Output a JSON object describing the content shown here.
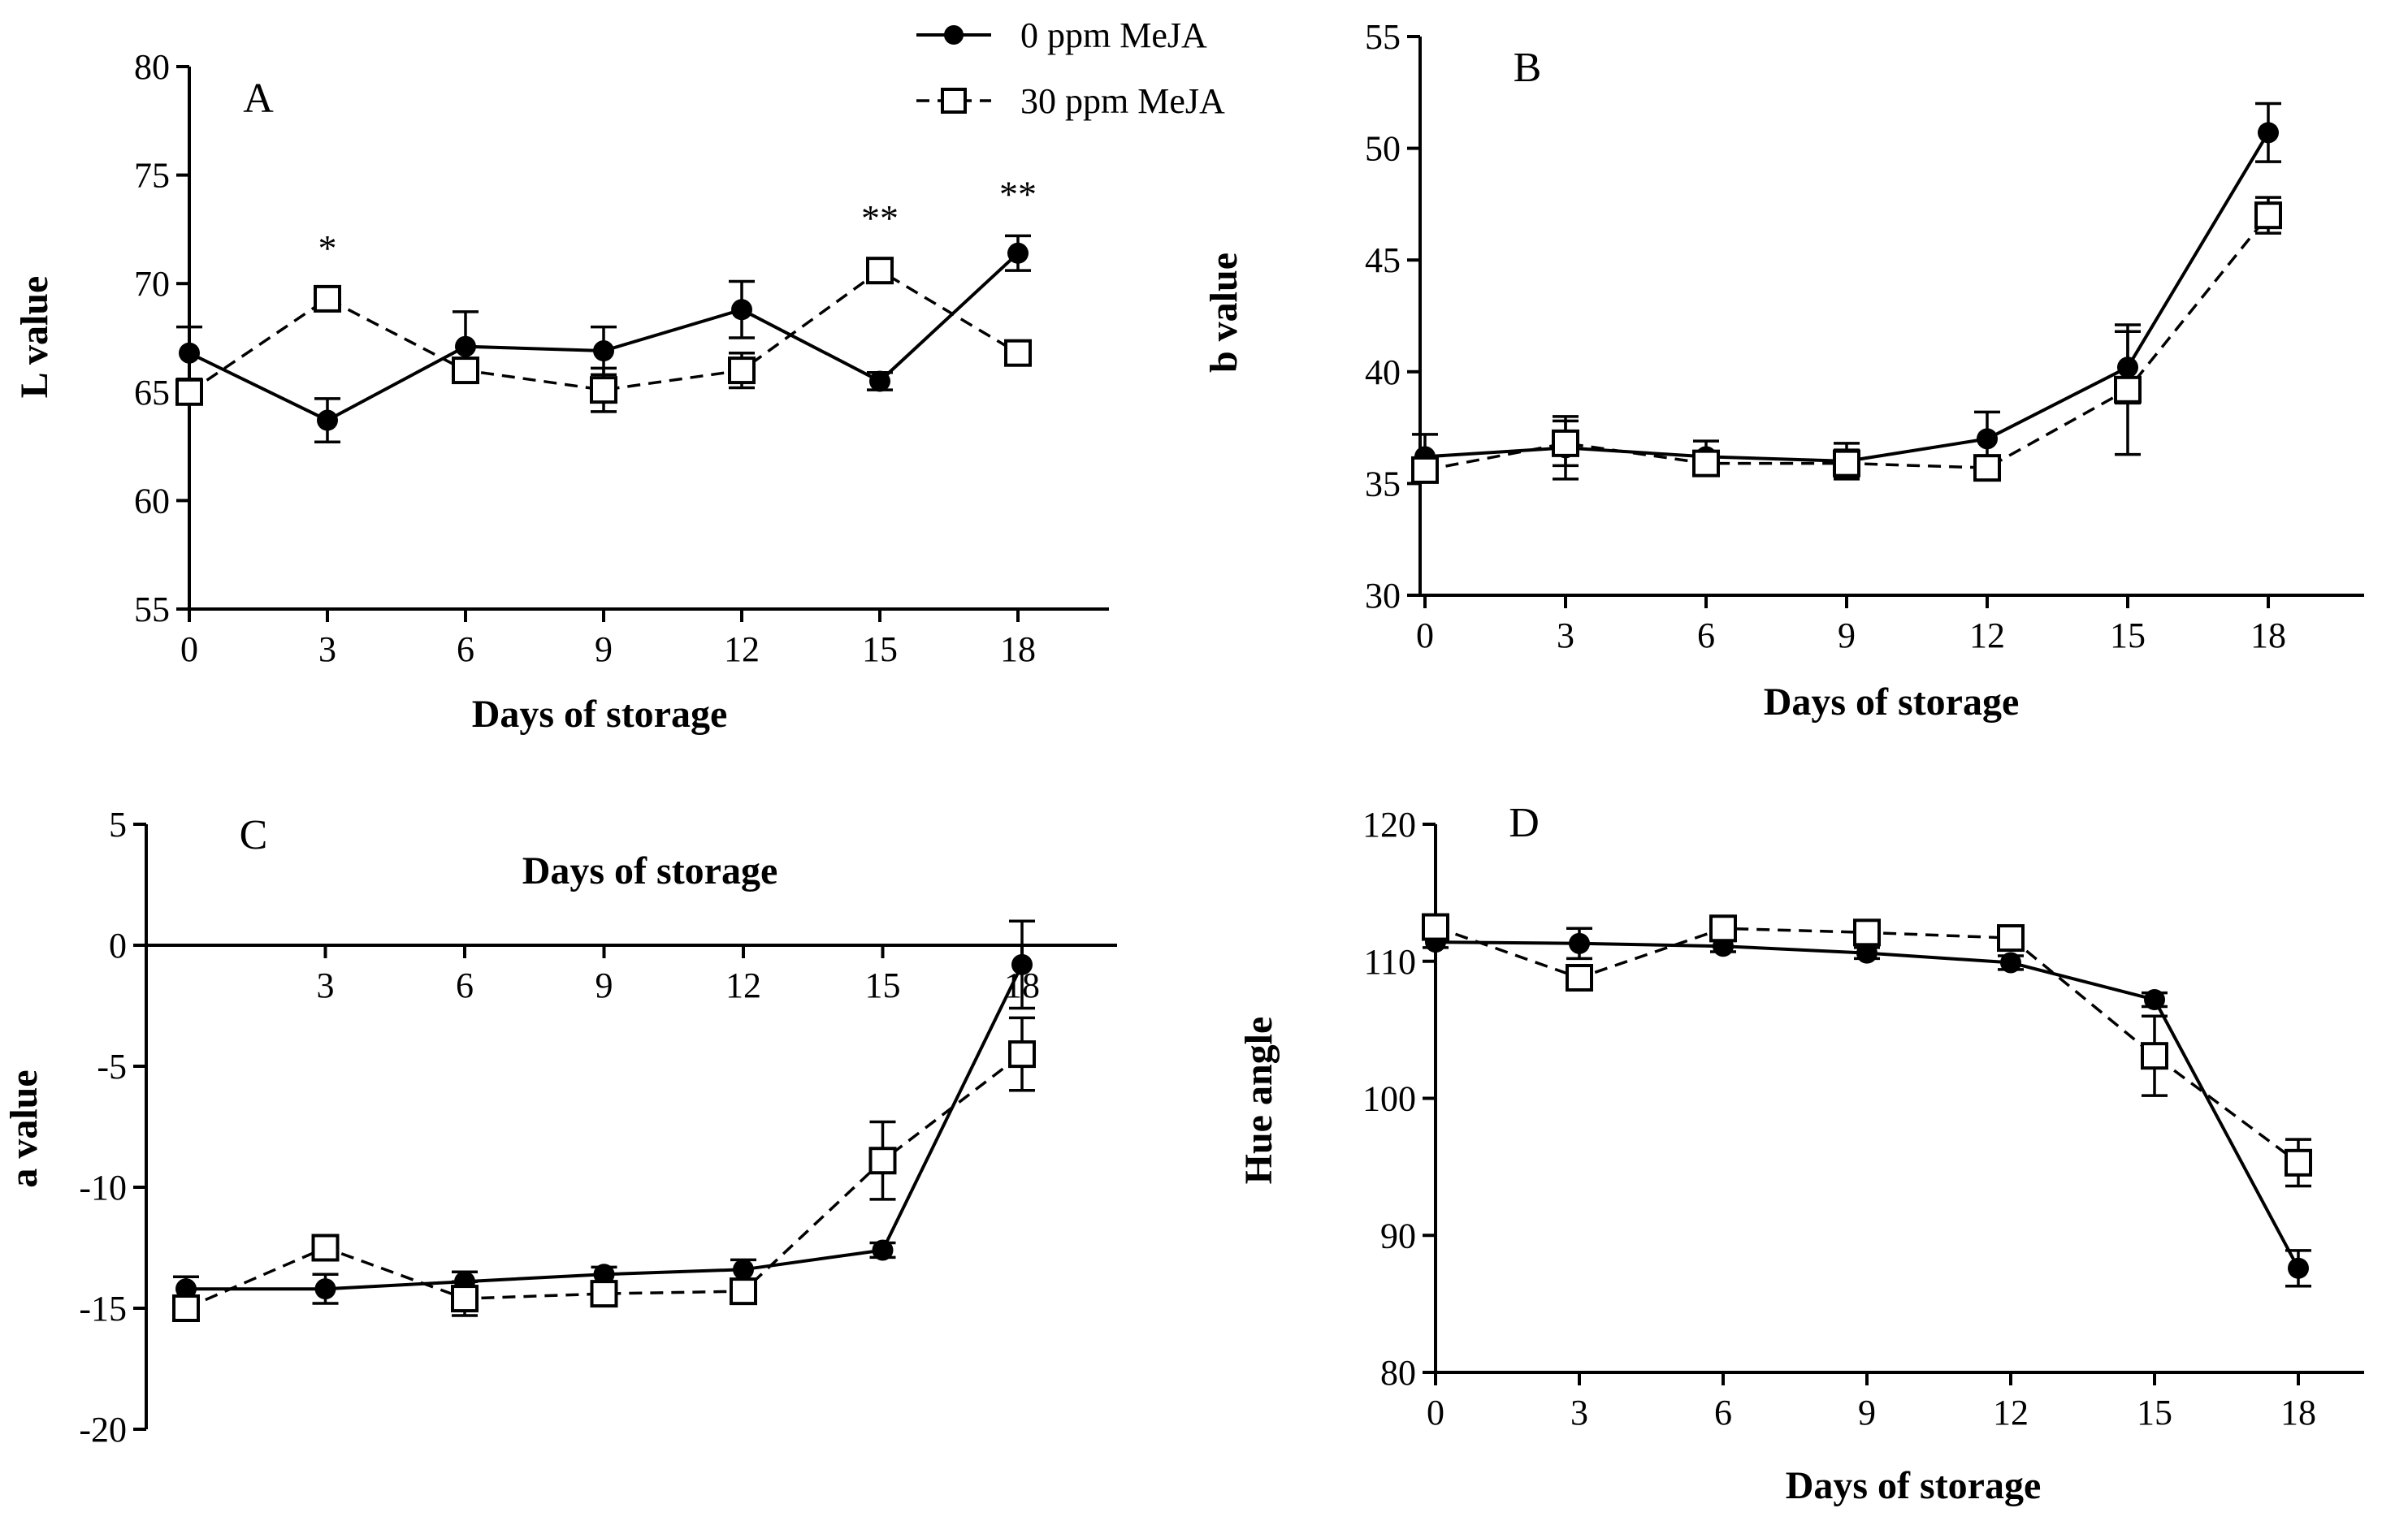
{
  "legend": {
    "series": [
      {
        "name": "0 ppm MeJA",
        "marker": "filled-circle",
        "line": "solid",
        "color": "#000000"
      },
      {
        "name": "30 ppm MeJA",
        "marker": "open-square",
        "line": "dashed",
        "color": "#000000"
      }
    ]
  },
  "chart_data": [
    {
      "id": "A",
      "type": "line",
      "panel_label": "A",
      "xlabel": "Days of storage",
      "ylabel": "L value",
      "x": [
        0,
        3,
        6,
        9,
        12,
        15,
        18
      ],
      "xticks": [
        "0",
        "3",
        "6",
        "9",
        "12",
        "15",
        "18"
      ],
      "yticks": [
        "55",
        "60",
        "65",
        "70",
        "75",
        "80"
      ],
      "ylim": [
        55,
        80
      ],
      "series": [
        {
          "name": "0 ppm MeJA",
          "values": [
            66.8,
            63.7,
            67.1,
            66.9,
            68.8,
            65.5,
            71.4
          ],
          "err": [
            1.2,
            1.0,
            1.6,
            1.1,
            1.3,
            0.4,
            0.8
          ]
        },
        {
          "name": "30 ppm MeJA",
          "values": [
            65.0,
            69.3,
            66.0,
            65.1,
            66.0,
            70.6,
            66.8
          ],
          "err": [
            0.4,
            0.4,
            0.5,
            1.0,
            0.8,
            0.5,
            0.3
          ]
        }
      ],
      "annotations": [
        {
          "x": 3,
          "text": "*"
        },
        {
          "x": 15,
          "text": "**"
        },
        {
          "x": 18,
          "text": "**"
        }
      ]
    },
    {
      "id": "B",
      "type": "line",
      "panel_label": "B",
      "xlabel": "Days of storage",
      "ylabel": "b value",
      "x": [
        0,
        3,
        6,
        9,
        12,
        15,
        18
      ],
      "xticks": [
        "0",
        "3",
        "6",
        "9",
        "12",
        "15",
        "18"
      ],
      "yticks": [
        "30",
        "35",
        "40",
        "45",
        "50",
        "55"
      ],
      "ylim": [
        30,
        55
      ],
      "series": [
        {
          "name": "0 ppm MeJA",
          "values": [
            36.2,
            36.6,
            36.2,
            36.0,
            37.0,
            40.2,
            50.7
          ],
          "err": [
            1.0,
            1.4,
            0.7,
            0.8,
            1.2,
            1.6,
            1.3
          ]
        },
        {
          "name": "30 ppm MeJA",
          "values": [
            35.6,
            36.8,
            35.9,
            35.9,
            35.7,
            39.2,
            47.0
          ],
          "err": [
            0.5,
            1.0,
            0.4,
            0.6,
            0.4,
            2.9,
            0.8
          ]
        }
      ],
      "annotations": []
    },
    {
      "id": "C",
      "type": "line",
      "panel_label": "C",
      "xlabel": "Days of storage",
      "ylabel": "a value",
      "x": [
        0,
        3,
        6,
        9,
        12,
        15,
        18
      ],
      "xticks": [
        "3",
        "6",
        "9",
        "12",
        "15",
        "18"
      ],
      "xtick_values": [
        3,
        6,
        9,
        12,
        15,
        18
      ],
      "yticks": [
        "-20",
        "-15",
        "-10",
        "-5",
        "0",
        "5"
      ],
      "ylim": [
        -20,
        5
      ],
      "series": [
        {
          "name": "0 ppm MeJA",
          "values": [
            -14.2,
            -14.2,
            -13.9,
            -13.6,
            -13.4,
            -12.6,
            -0.8
          ],
          "err": [
            0.5,
            0.6,
            0.4,
            0.3,
            0.4,
            0.3,
            1.8
          ]
        },
        {
          "name": "30 ppm MeJA",
          "values": [
            -15.0,
            -12.5,
            -14.6,
            -14.4,
            -14.3,
            -8.9,
            -4.5
          ],
          "err": [
            0.5,
            0.4,
            0.7,
            0.5,
            0.5,
            1.6,
            1.5
          ]
        }
      ],
      "annotations": []
    },
    {
      "id": "D",
      "type": "line",
      "panel_label": "D",
      "xlabel": "Days of storage",
      "ylabel": "Hue angle",
      "x": [
        0,
        3,
        6,
        9,
        12,
        15,
        18
      ],
      "xticks": [
        "0",
        "3",
        "6",
        "9",
        "12",
        "15",
        "18"
      ],
      "yticks": [
        "80",
        "90",
        "100",
        "110",
        "120"
      ],
      "ylim": [
        80,
        120
      ],
      "series": [
        {
          "name": "0 ppm MeJA",
          "values": [
            111.4,
            111.3,
            111.1,
            110.6,
            109.9,
            107.2,
            87.6
          ],
          "err": [
            0.4,
            1.1,
            0.4,
            0.4,
            0.5,
            0.5,
            1.3
          ]
        },
        {
          "name": "30 ppm MeJA",
          "values": [
            112.5,
            108.8,
            112.4,
            112.1,
            111.7,
            103.1,
            95.3
          ],
          "err": [
            0.5,
            0.8,
            0.8,
            0.8,
            0.5,
            2.9,
            1.7
          ]
        }
      ],
      "annotations": []
    }
  ]
}
